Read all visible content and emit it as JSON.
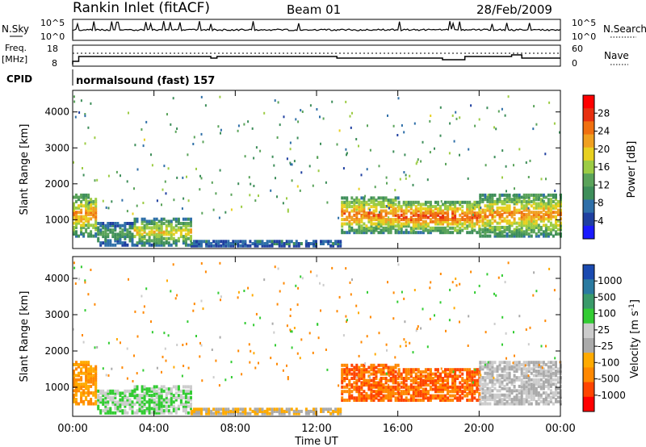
{
  "header": {
    "station": "Rankin Inlet (fitACF)",
    "beam": "Beam 01",
    "date": "28/Feb/2009"
  },
  "status_panel": {
    "nsky_label": "N.Sky",
    "nsky_ticks": [
      "10^5",
      "10^0"
    ],
    "nsearch_label": "N.Search",
    "nsearch_ticks": [
      "10^5",
      "10^0"
    ],
    "freq_label": "Freq.",
    "freq_unit": "[MHz]",
    "freq_ticks": [
      "18",
      "8"
    ],
    "nave_label": "Nave",
    "nave_ticks": [
      "60",
      "0"
    ],
    "cpid_label": "CPID",
    "cpid_value": "normalsound (fast) 157"
  },
  "colors": {
    "power": [
      "#1a1aff",
      "#1f3fa0",
      "#2f6fa8",
      "#3e8e5a",
      "#5aa35a",
      "#9ccc44",
      "#e8d020",
      "#f0a020",
      "#f07010",
      "#e83010",
      "#ff0000"
    ],
    "velocity": [
      "#ff0000",
      "#ff4400",
      "#ff8800",
      "#ffaa00",
      "#aaaaaa",
      "#cccccc",
      "#33cc33",
      "#3a9a6a",
      "#2a7aa0",
      "#1a4ab0"
    ]
  },
  "chart_data": [
    {
      "type": "heatmap",
      "name": "power-panel",
      "xlabel": "",
      "ylabel": "Slant Range [km]",
      "xlim": [
        0,
        24
      ],
      "ylim": [
        200,
        4600
      ],
      "yticks": [
        "1000",
        "2000",
        "3000",
        "4000"
      ],
      "colorbar": {
        "label": "Power [dB]",
        "ticks": [
          "28",
          "24",
          "20",
          "16",
          "12",
          "8",
          "4"
        ],
        "range": [
          0,
          32
        ]
      },
      "bands": [
        {
          "t0": 0.0,
          "t1": 1.2,
          "r0": 500,
          "r1": 1700,
          "peak": 24
        },
        {
          "t0": 1.2,
          "t1": 3.0,
          "r0": 250,
          "r1": 900,
          "peak": 12
        },
        {
          "t0": 3.0,
          "t1": 5.8,
          "r0": 250,
          "r1": 1000,
          "peak": 20
        },
        {
          "t0": 5.8,
          "t1": 13.2,
          "r0": 230,
          "r1": 400,
          "peak": 8
        },
        {
          "t0": 13.2,
          "t1": 16.0,
          "r0": 600,
          "r1": 1600,
          "peak": 26
        },
        {
          "t0": 16.0,
          "t1": 20.0,
          "r0": 600,
          "r1": 1500,
          "peak": 28
        },
        {
          "t0": 20.0,
          "t1": 24.0,
          "r0": 500,
          "r1": 1700,
          "peak": 24
        }
      ]
    },
    {
      "type": "heatmap",
      "name": "velocity-panel",
      "xlabel": "Time UT",
      "ylabel": "Slant Range [km]",
      "xlim": [
        0,
        24
      ],
      "ylim": [
        200,
        4600
      ],
      "xticks": [
        "00:00",
        "04:00",
        "08:00",
        "12:00",
        "16:00",
        "20:00",
        "00:00"
      ],
      "yticks": [
        "1000",
        "2000",
        "3000",
        "4000"
      ],
      "colorbar": {
        "label": "Velocity [m s^-1]",
        "ticks": [
          "1000",
          "500",
          "100",
          "25",
          "-25",
          "-100",
          "-500",
          "-1000"
        ]
      },
      "bands": [
        {
          "t0": 0.0,
          "t1": 1.2,
          "r0": 500,
          "r1": 1700,
          "vel": -100
        },
        {
          "t0": 1.2,
          "t1": 3.0,
          "r0": 250,
          "r1": 900,
          "vel": 100
        },
        {
          "t0": 3.0,
          "t1": 5.8,
          "r0": 250,
          "r1": 1000,
          "vel": 100
        },
        {
          "t0": 5.8,
          "t1": 13.2,
          "r0": 230,
          "r1": 400,
          "vel": -25
        },
        {
          "t0": 13.2,
          "t1": 20.0,
          "r0": 600,
          "r1": 1600,
          "vel": -500
        },
        {
          "t0": 20.0,
          "t1": 24.0,
          "r0": 500,
          "r1": 1800,
          "vel": 25
        }
      ]
    }
  ]
}
